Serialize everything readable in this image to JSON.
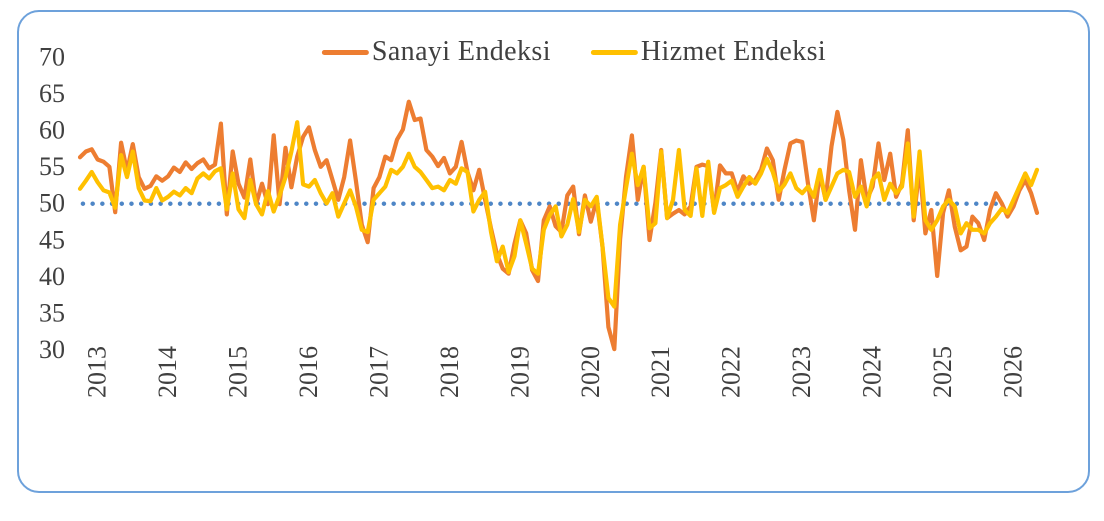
{
  "panel": {
    "border_color": "#6DA1DB",
    "background_color": "#FFFFFF"
  },
  "legend": [
    {
      "label": "Sanayi Endeksi",
      "color": "#ED7D31"
    },
    {
      "label": "Hizmet Endeksi",
      "color": "#FFC000"
    }
  ],
  "chart_data": {
    "type": "line",
    "title": "",
    "xlabel": "",
    "ylabel": "",
    "x_unit": "month",
    "x_start": "2012-10",
    "x_end": "2026-05",
    "ylim": [
      30,
      70
    ],
    "yticks": [
      70,
      65,
      60,
      55,
      50,
      45,
      40,
      35,
      30
    ],
    "year_labels": [
      "2013",
      "2014",
      "2015",
      "2016",
      "2017",
      "2018",
      "2019",
      "2020",
      "2021",
      "2022",
      "2023",
      "2024",
      "2025",
      "2026"
    ],
    "grid": false,
    "legend_position": "top-center",
    "reference_line": {
      "value": 50,
      "style": "dotted",
      "color": "#4E86C6"
    },
    "series": [
      {
        "name": "Sanayi Endeksi",
        "color": "#ED7D31",
        "values": [
          56.2,
          57.0,
          57.3,
          55.9,
          55.6,
          54.9,
          48.7,
          58.2,
          54.3,
          58.0,
          53.5,
          51.9,
          52.3,
          53.6,
          53.0,
          53.6,
          54.8,
          54.2,
          55.5,
          54.6,
          55.4,
          55.9,
          54.7,
          55.2,
          60.8,
          48.4,
          57.0,
          52.6,
          50.7,
          55.9,
          49.8,
          52.6,
          49.8,
          59.2,
          49.8,
          57.5,
          52.1,
          56.3,
          59.0,
          60.3,
          57.2,
          54.9,
          55.8,
          53.1,
          50.4,
          53.5,
          58.5,
          53.0,
          47.0,
          44.6,
          52.0,
          53.5,
          56.3,
          55.8,
          58.6,
          60.0,
          63.8,
          61.3,
          61.5,
          57.2,
          56.3,
          55.0,
          56.1,
          54.0,
          54.9,
          58.3,
          54.2,
          51.7,
          54.5,
          50.4,
          46.5,
          43.0,
          41.0,
          40.3,
          44.4,
          47.6,
          45.8,
          40.8,
          39.3,
          47.6,
          49.5,
          46.8,
          46.0,
          51.0,
          52.2,
          45.7,
          51.0,
          47.4,
          50.4,
          44.0,
          33.0,
          30.0,
          45.0,
          53.5,
          59.2,
          50.4,
          54.9,
          44.9,
          50.0,
          57.2,
          47.9,
          48.5,
          49.0,
          48.4,
          49.5,
          54.9,
          55.2,
          55.0,
          48.8,
          55.1,
          54.0,
          54.0,
          51.5,
          53.6,
          52.6,
          53.1,
          54.5,
          57.4,
          55.8,
          50.4,
          54.5,
          58.1,
          58.5,
          58.3,
          52.6,
          47.6,
          54.0,
          50.4,
          57.7,
          62.4,
          58.6,
          51.7,
          46.3,
          55.8,
          50.4,
          52.2,
          58.1,
          53.1,
          56.7,
          50.8,
          52.6,
          59.9,
          47.6,
          55.0,
          45.8,
          49.0,
          40.0,
          48.6,
          51.7,
          46.7,
          43.5,
          44.0,
          48.1,
          47.2,
          44.9,
          49.0,
          51.3,
          49.9,
          48.1,
          49.5,
          51.7,
          53.1,
          51.3,
          48.6
        ]
      },
      {
        "name": "Hizmet Endeksi",
        "color": "#FFC000",
        "values": [
          51.9,
          53.0,
          54.2,
          52.8,
          51.7,
          51.4,
          49.3,
          56.5,
          53.5,
          57.0,
          52.0,
          50.3,
          50.2,
          52.0,
          50.3,
          50.8,
          51.5,
          51.0,
          52.0,
          51.3,
          53.3,
          54.0,
          53.3,
          54.3,
          54.7,
          49.1,
          54.0,
          49.1,
          47.9,
          53.1,
          49.8,
          48.4,
          51.6,
          48.8,
          51.0,
          53.5,
          57.0,
          61.0,
          52.5,
          52.2,
          53.1,
          51.3,
          49.9,
          51.3,
          48.1,
          49.9,
          51.7,
          49.5,
          46.3,
          46.0,
          50.4,
          51.3,
          52.2,
          54.5,
          54.0,
          54.9,
          56.7,
          54.9,
          54.2,
          53.1,
          52.0,
          52.2,
          51.7,
          53.1,
          52.6,
          54.7,
          54.2,
          48.8,
          50.4,
          51.5,
          46.0,
          42.0,
          44.0,
          40.5,
          42.7,
          47.6,
          44.4,
          41.0,
          40.3,
          46.3,
          48.3,
          49.5,
          45.4,
          47.0,
          50.5,
          46.0,
          50.4,
          49.5,
          50.8,
          44.0,
          37.0,
          35.8,
          47.0,
          52.0,
          56.7,
          52.4,
          54.9,
          46.5,
          47.2,
          57.0,
          47.9,
          50.4,
          57.2,
          49.0,
          48.2,
          54.7,
          48.2,
          55.6,
          48.6,
          52.0,
          52.4,
          53.0,
          50.8,
          52.2,
          53.5,
          52.6,
          54.0,
          56.0,
          54.2,
          51.5,
          52.5,
          54.0,
          52.0,
          51.3,
          52.2,
          50.8,
          54.5,
          50.4,
          52.2,
          54.0,
          54.5,
          54.2,
          50.8,
          52.2,
          49.5,
          53.1,
          54.0,
          50.4,
          52.6,
          51.3,
          52.2,
          58.1,
          48.1,
          57.0,
          47.6,
          46.3,
          47.6,
          49.5,
          50.4,
          49.5,
          45.8,
          47.2,
          46.3,
          46.3,
          45.8,
          47.2,
          48.1,
          49.2,
          48.6,
          50.4,
          52.2,
          54.0,
          52.4,
          54.5
        ]
      }
    ]
  }
}
